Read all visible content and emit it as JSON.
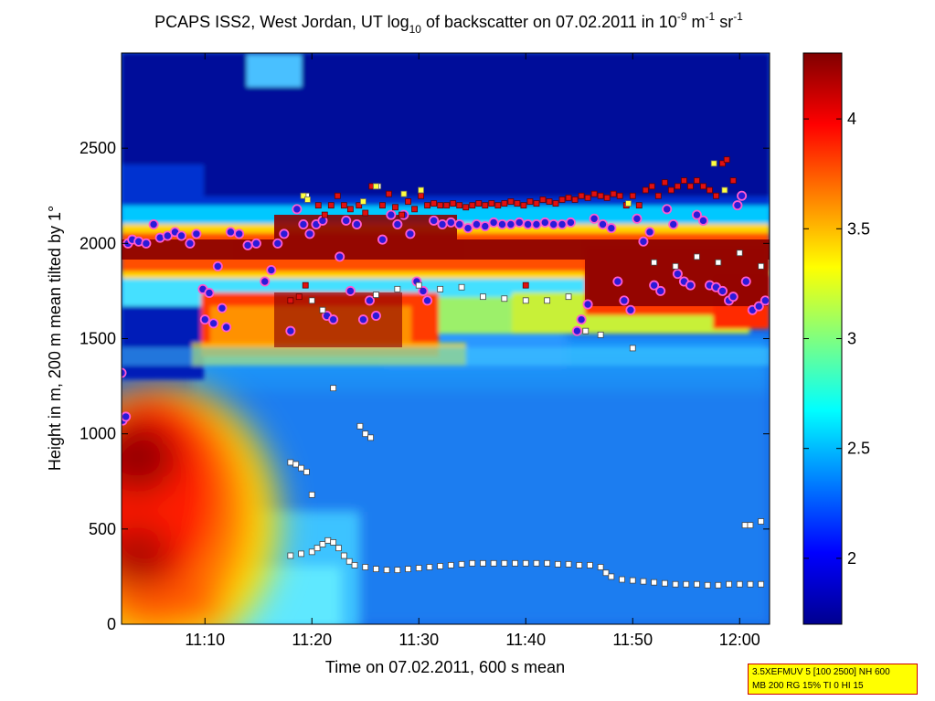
{
  "chart_data": {
    "type": "heatmap",
    "title": {
      "prefix": "PCAPS ISS2, West Jordan, UT log",
      "prefix_sub": "10",
      "middle": " of backscatter on 07.02.2011 in 10",
      "exp1": "-9",
      "unit_m": " m",
      "exp2": "-1",
      "unit_sr": " sr",
      "exp3": "-1"
    },
    "xlabel": "Time on 07.02.2011, 600 s mean",
    "ylabel": "Height in m, 200 m mean tilted by 1°",
    "x_range_minutes": [
      62.2,
      122.8
    ],
    "ylim": [
      0,
      3000
    ],
    "x_ticks": [
      {
        "label": "11:10",
        "minutes": 70
      },
      {
        "label": "11:20",
        "minutes": 80
      },
      {
        "label": "11:30",
        "minutes": 90
      },
      {
        "label": "11:40",
        "minutes": 100
      },
      {
        "label": "11:50",
        "minutes": 110
      },
      {
        "label": "12:00",
        "minutes": 120
      }
    ],
    "y_ticks": [
      {
        "label": "0",
        "value": 0
      },
      {
        "label": "500",
        "value": 500
      },
      {
        "label": "1000",
        "value": 1000
      },
      {
        "label": "1500",
        "value": 1500
      },
      {
        "label": "2000",
        "value": 2000
      },
      {
        "label": "2500",
        "value": 2500
      }
    ],
    "colorbar": {
      "range": [
        1.7,
        4.3
      ],
      "ticks": [
        {
          "label": "2",
          "value": 2
        },
        {
          "label": "2.5",
          "value": 2.5
        },
        {
          "label": "3",
          "value": 3
        },
        {
          "label": "3.5",
          "value": 3.5
        },
        {
          "label": "4",
          "value": 4
        }
      ],
      "colormap": "jet"
    },
    "series": [
      {
        "marker": "circle",
        "points": [
          [
            62.2,
            1320
          ],
          [
            62.3,
            1070
          ],
          [
            62.6,
            1090
          ],
          [
            62.8,
            2000
          ],
          [
            63.2,
            2020
          ],
          [
            63.8,
            2010
          ],
          [
            64.5,
            2000
          ],
          [
            65.2,
            2100
          ],
          [
            65.8,
            2030
          ],
          [
            66.5,
            2040
          ],
          [
            67.2,
            2060
          ],
          [
            67.8,
            2040
          ],
          [
            68.6,
            2000
          ],
          [
            69.2,
            2050
          ],
          [
            69.8,
            1760
          ],
          [
            70.0,
            1600
          ],
          [
            70.4,
            1740
          ],
          [
            70.8,
            1580
          ],
          [
            71.2,
            1880
          ],
          [
            71.6,
            1660
          ],
          [
            72.0,
            1560
          ],
          [
            72.4,
            2060
          ],
          [
            73.2,
            2050
          ],
          [
            74.0,
            1990
          ],
          [
            74.8,
            2000
          ],
          [
            75.6,
            1800
          ],
          [
            76.2,
            1860
          ],
          [
            76.8,
            2000
          ],
          [
            77.4,
            2050
          ],
          [
            78.0,
            1540
          ],
          [
            78.6,
            2180
          ],
          [
            79.2,
            2100
          ],
          [
            79.8,
            2050
          ],
          [
            80.4,
            2100
          ],
          [
            81.0,
            2120
          ],
          [
            81.4,
            1620
          ],
          [
            82.0,
            1600
          ],
          [
            82.6,
            1930
          ],
          [
            83.2,
            2120
          ],
          [
            83.6,
            1750
          ],
          [
            84.2,
            2100
          ],
          [
            84.8,
            1600
          ],
          [
            85.4,
            1700
          ],
          [
            86.0,
            1620
          ],
          [
            86.6,
            2020
          ],
          [
            87.4,
            2150
          ],
          [
            88.0,
            2100
          ],
          [
            88.6,
            2150
          ],
          [
            89.2,
            2050
          ],
          [
            89.8,
            1800
          ],
          [
            90.4,
            1750
          ],
          [
            90.8,
            1700
          ],
          [
            91.4,
            2120
          ],
          [
            92.2,
            2100
          ],
          [
            93.0,
            2110
          ],
          [
            93.8,
            2100
          ],
          [
            94.6,
            2080
          ],
          [
            95.4,
            2100
          ],
          [
            96.2,
            2090
          ],
          [
            97.0,
            2110
          ],
          [
            97.8,
            2100
          ],
          [
            98.6,
            2100
          ],
          [
            99.4,
            2110
          ],
          [
            100.2,
            2100
          ],
          [
            101.0,
            2100
          ],
          [
            101.8,
            2110
          ],
          [
            102.6,
            2100
          ],
          [
            103.4,
            2100
          ],
          [
            104.2,
            2110
          ],
          [
            104.8,
            1540
          ],
          [
            105.2,
            1600
          ],
          [
            105.8,
            1680
          ],
          [
            106.4,
            2130
          ],
          [
            107.2,
            2100
          ],
          [
            108.0,
            2080
          ],
          [
            108.6,
            1800
          ],
          [
            109.2,
            1700
          ],
          [
            109.8,
            1650
          ],
          [
            110.4,
            2130
          ],
          [
            111.0,
            2010
          ],
          [
            111.6,
            2060
          ],
          [
            112.0,
            1780
          ],
          [
            112.6,
            1750
          ],
          [
            113.2,
            2180
          ],
          [
            113.8,
            2100
          ],
          [
            114.2,
            1840
          ],
          [
            114.8,
            1800
          ],
          [
            115.4,
            1780
          ],
          [
            116.0,
            2150
          ],
          [
            116.6,
            2120
          ],
          [
            117.2,
            1780
          ],
          [
            117.8,
            1770
          ],
          [
            118.4,
            1750
          ],
          [
            119.0,
            1700
          ],
          [
            119.4,
            1720
          ],
          [
            119.8,
            2200
          ],
          [
            120.2,
            2250
          ],
          [
            120.6,
            1800
          ],
          [
            121.2,
            1650
          ],
          [
            121.8,
            1670
          ],
          [
            122.4,
            1700
          ]
        ]
      },
      {
        "marker": "white-square",
        "points": [
          [
            78.0,
            850
          ],
          [
            78.5,
            840
          ],
          [
            79.0,
            820
          ],
          [
            79.5,
            800
          ],
          [
            80.0,
            680
          ],
          [
            82.0,
            1240
          ],
          [
            84.5,
            1040
          ],
          [
            85.0,
            1000
          ],
          [
            85.5,
            980
          ],
          [
            78.0,
            360
          ],
          [
            79.0,
            370
          ],
          [
            80.0,
            380
          ],
          [
            80.5,
            400
          ],
          [
            81.0,
            420
          ],
          [
            81.5,
            440
          ],
          [
            82.0,
            430
          ],
          [
            82.5,
            400
          ],
          [
            83.0,
            360
          ],
          [
            83.5,
            330
          ],
          [
            84.0,
            310
          ],
          [
            85.0,
            300
          ],
          [
            86.0,
            290
          ],
          [
            87.0,
            285
          ],
          [
            88.0,
            285
          ],
          [
            89.0,
            290
          ],
          [
            90.0,
            295
          ],
          [
            91.0,
            300
          ],
          [
            92.0,
            305
          ],
          [
            93.0,
            310
          ],
          [
            94.0,
            315
          ],
          [
            95.0,
            320
          ],
          [
            96.0,
            320
          ],
          [
            97.0,
            320
          ],
          [
            98.0,
            320
          ],
          [
            99.0,
            320
          ],
          [
            100.0,
            320
          ],
          [
            101.0,
            320
          ],
          [
            102.0,
            320
          ],
          [
            103.0,
            315
          ],
          [
            104.0,
            315
          ],
          [
            105.0,
            310
          ],
          [
            106.0,
            310
          ],
          [
            107.0,
            300
          ],
          [
            107.5,
            270
          ],
          [
            108.0,
            250
          ],
          [
            109.0,
            235
          ],
          [
            110.0,
            230
          ],
          [
            111.0,
            225
          ],
          [
            112.0,
            220
          ],
          [
            113.0,
            215
          ],
          [
            114.0,
            210
          ],
          [
            115.0,
            210
          ],
          [
            116.0,
            210
          ],
          [
            117.0,
            205
          ],
          [
            118.0,
            205
          ],
          [
            119.0,
            210
          ],
          [
            120.0,
            210
          ],
          [
            121.0,
            210
          ],
          [
            122.0,
            210
          ],
          [
            120.5,
            520
          ],
          [
            121.0,
            520
          ],
          [
            122.0,
            540
          ],
          [
            86.0,
            1730
          ],
          [
            88.0,
            1760
          ],
          [
            90.0,
            1780
          ],
          [
            92.0,
            1760
          ],
          [
            94.0,
            1770
          ],
          [
            96.0,
            1720
          ],
          [
            98.0,
            1710
          ],
          [
            100.0,
            1700
          ],
          [
            102.0,
            1700
          ],
          [
            104.0,
            1720
          ],
          [
            105.6,
            1540
          ],
          [
            107.0,
            1520
          ],
          [
            110.0,
            1450
          ],
          [
            112.0,
            1900
          ],
          [
            114.0,
            1880
          ],
          [
            116.0,
            1930
          ],
          [
            118.0,
            1900
          ],
          [
            120.0,
            1950
          ],
          [
            122.0,
            1880
          ],
          [
            86.2,
            2300
          ],
          [
            80.0,
            1700
          ],
          [
            81.0,
            1650
          ],
          [
            79.5,
            2250
          ]
        ]
      },
      {
        "marker": "red-square",
        "points": [
          [
            78.0,
            1700
          ],
          [
            78.8,
            1720
          ],
          [
            79.4,
            1780
          ],
          [
            80.6,
            2200
          ],
          [
            81.2,
            2150
          ],
          [
            81.8,
            2200
          ],
          [
            82.4,
            2250
          ],
          [
            83.0,
            2200
          ],
          [
            83.6,
            2180
          ],
          [
            84.4,
            2200
          ],
          [
            85.0,
            2160
          ],
          [
            85.6,
            2300
          ],
          [
            86.6,
            2200
          ],
          [
            87.2,
            2260
          ],
          [
            87.8,
            2190
          ],
          [
            88.4,
            2150
          ],
          [
            89.0,
            2220
          ],
          [
            89.6,
            2180
          ],
          [
            90.2,
            2250
          ],
          [
            90.8,
            2200
          ],
          [
            91.4,
            2210
          ],
          [
            92.0,
            2200
          ],
          [
            92.6,
            2200
          ],
          [
            93.2,
            2210
          ],
          [
            93.8,
            2200
          ],
          [
            94.4,
            2190
          ],
          [
            95.0,
            2200
          ],
          [
            95.6,
            2210
          ],
          [
            96.2,
            2200
          ],
          [
            96.8,
            2210
          ],
          [
            97.4,
            2200
          ],
          [
            98.0,
            2210
          ],
          [
            98.6,
            2220
          ],
          [
            99.2,
            2210
          ],
          [
            99.8,
            2200
          ],
          [
            100.4,
            2220
          ],
          [
            101.0,
            2210
          ],
          [
            101.6,
            2230
          ],
          [
            102.2,
            2220
          ],
          [
            102.8,
            2210
          ],
          [
            103.4,
            2230
          ],
          [
            104.0,
            2240
          ],
          [
            104.6,
            2230
          ],
          [
            105.2,
            2250
          ],
          [
            105.8,
            2240
          ],
          [
            106.4,
            2260
          ],
          [
            107.0,
            2250
          ],
          [
            107.6,
            2240
          ],
          [
            108.2,
            2260
          ],
          [
            108.8,
            2250
          ],
          [
            109.4,
            2200
          ],
          [
            110.0,
            2250
          ],
          [
            110.6,
            2200
          ],
          [
            111.2,
            2280
          ],
          [
            111.8,
            2300
          ],
          [
            112.4,
            2250
          ],
          [
            113.0,
            2320
          ],
          [
            113.6,
            2280
          ],
          [
            114.2,
            2300
          ],
          [
            114.8,
            2330
          ],
          [
            115.4,
            2300
          ],
          [
            116.0,
            2330
          ],
          [
            116.6,
            2300
          ],
          [
            117.2,
            2280
          ],
          [
            117.8,
            2250
          ],
          [
            118.4,
            2420
          ],
          [
            118.8,
            2440
          ],
          [
            119.4,
            2330
          ],
          [
            100.0,
            1780
          ]
        ]
      },
      {
        "marker": "yellow-square",
        "points": [
          [
            79.2,
            2250
          ],
          [
            79.6,
            2230
          ],
          [
            84.8,
            2220
          ],
          [
            86.0,
            2300
          ],
          [
            88.6,
            2260
          ],
          [
            90.2,
            2280
          ],
          [
            109.6,
            2210
          ],
          [
            117.6,
            2420
          ],
          [
            118.6,
            2280
          ]
        ]
      }
    ]
  },
  "infobox": {
    "line1": "3.5XEFMUV 5 [100 2500] NH 600",
    "line2": "MB 200 RG 15% TI 0 HI 15"
  }
}
